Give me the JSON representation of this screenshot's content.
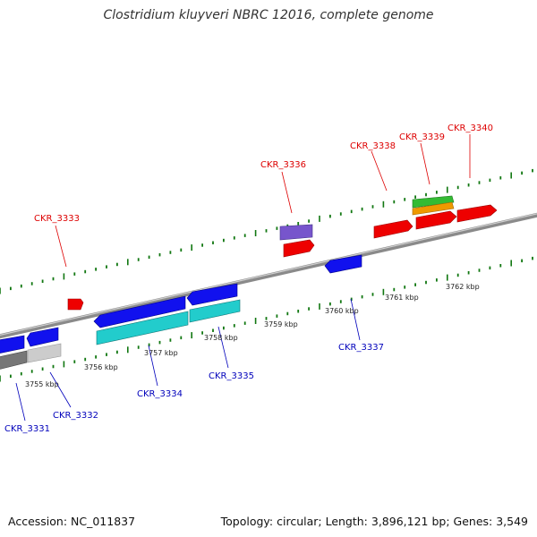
{
  "header": {
    "title": "Clostridium kluyveri NBRC 12016, complete genome"
  },
  "footer": {
    "accession": "Accession: NC_011837",
    "summary": "Topology: circular; Length: 3,896,121 bp; Genes: 3,549"
  },
  "colors": {
    "forward_label": "#dd0000",
    "reverse_label": "#0000bb",
    "forward_gene": "#ee0000",
    "reverse_gene": "#1111ee",
    "rna_cyan": "#22cccc",
    "rna_purple": "#7755cc",
    "rna_green": "#33bb33",
    "rna_orange": "#ee9900",
    "tick": "#117711",
    "backbone": "#888888"
  },
  "kbp_ticks": [
    "3755 kbp",
    "3756 kbp",
    "3757 kbp",
    "3758 kbp",
    "3759 kbp",
    "3760 kbp",
    "3761 kbp",
    "3762 kbp"
  ],
  "genes_forward": [
    "CKR_3333",
    "CKR_3336",
    "CKR_3338",
    "CKR_3339",
    "CKR_3340"
  ],
  "genes_reverse": [
    "CKR_3331",
    "CKR_3332",
    "CKR_3334",
    "CKR_3335",
    "CKR_3337"
  ]
}
